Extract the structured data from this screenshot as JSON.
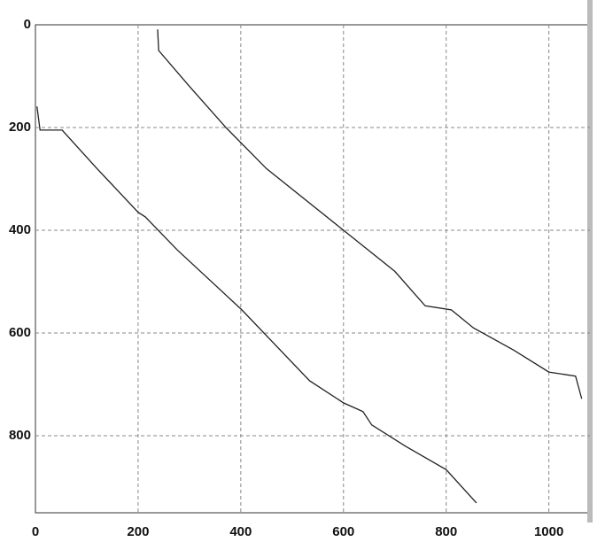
{
  "chart_data": {
    "type": "line",
    "series": [
      {
        "color": "#222222",
        "x": [
          238,
          240,
          300,
          371,
          450,
          600,
          700,
          759,
          810,
          853,
          931,
          1000,
          1052,
          1064
        ],
        "values": [
          9,
          50,
          120,
          200,
          280,
          400,
          480,
          547,
          555,
          590,
          633,
          676,
          684,
          728
        ]
      },
      {
        "color": "#222222",
        "x": [
          3,
          9,
          52,
          120,
          200,
          214,
          276,
          402,
          534,
          600,
          638,
          655,
          720,
          800,
          859
        ],
        "values": [
          159,
          205,
          205,
          280,
          365,
          374,
          438,
          555,
          693,
          736,
          753,
          779,
          820,
          866,
          931
        ]
      }
    ],
    "xlim": [
      0,
      1080
    ],
    "xticks": [
      0,
      200,
      400,
      600,
      800,
      1000
    ],
    "ylim": [
      950,
      0
    ],
    "yticks": [
      0,
      200,
      400,
      600,
      800
    ],
    "grid": true
  }
}
